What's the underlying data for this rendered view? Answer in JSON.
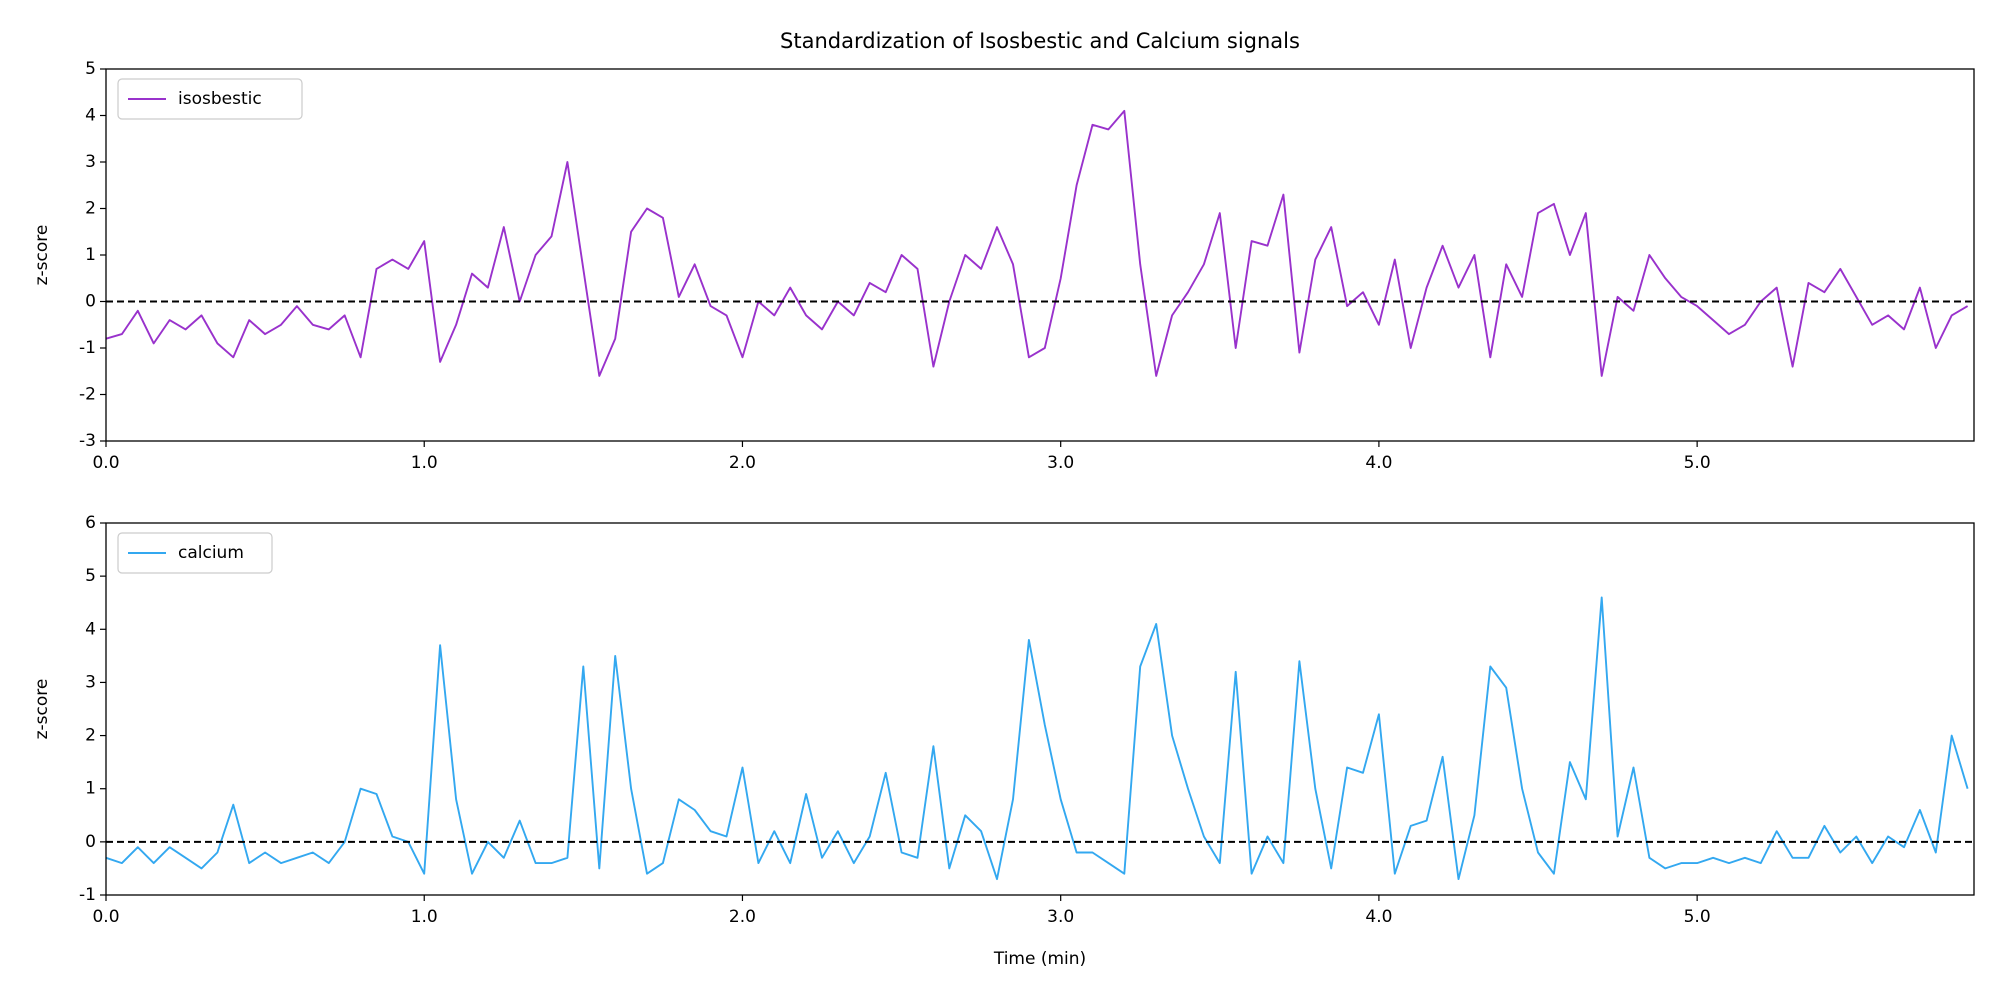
{
  "chart_data": [
    {
      "type": "line",
      "title": "Standardization of Isosbestic and Calcium signals",
      "y_label": "z-score",
      "x": [
        0,
        0.05,
        0.1,
        0.15,
        0.2,
        0.25,
        0.3,
        0.35,
        0.4,
        0.45,
        0.5,
        0.55,
        0.6,
        0.65,
        0.7,
        0.75,
        0.8,
        0.85,
        0.9,
        0.95,
        1.0,
        1.05,
        1.1,
        1.15,
        1.2,
        1.25,
        1.3,
        1.35,
        1.4,
        1.45,
        1.5,
        1.55,
        1.6,
        1.65,
        1.7,
        1.75,
        1.8,
        1.85,
        1.9,
        1.95,
        2.0,
        2.05,
        2.1,
        2.15,
        2.2,
        2.25,
        2.3,
        2.35,
        2.4,
        2.45,
        2.5,
        2.55,
        2.6,
        2.65,
        2.7,
        2.75,
        2.8,
        2.85,
        2.9,
        2.95,
        3.0,
        3.05,
        3.1,
        3.15,
        3.2,
        3.25,
        3.3,
        3.35,
        3.4,
        3.45,
        3.5,
        3.55,
        3.6,
        3.65,
        3.7,
        3.75,
        3.8,
        3.85,
        3.9,
        3.95,
        4.0,
        4.05,
        4.1,
        4.15,
        4.2,
        4.25,
        4.3,
        4.35,
        4.4,
        4.45,
        4.5,
        4.55,
        4.6,
        4.65,
        4.7,
        4.75,
        4.8,
        4.85,
        4.9,
        4.95,
        5.0,
        5.05,
        5.1,
        5.15,
        5.2,
        5.25,
        5.3,
        5.35,
        5.4,
        5.45,
        5.5,
        5.55,
        5.6,
        5.65,
        5.7,
        5.75,
        5.8,
        5.85
      ],
      "series": [
        {
          "name": "isosbestic",
          "color": "#9932cc",
          "values": [
            -0.8,
            -0.7,
            -0.2,
            -0.9,
            -0.4,
            -0.6,
            -0.3,
            -0.9,
            -1.2,
            -0.4,
            -0.7,
            -0.5,
            -0.1,
            -0.5,
            -0.6,
            -0.3,
            -1.2,
            0.7,
            0.9,
            0.7,
            1.3,
            -1.3,
            -0.5,
            0.6,
            0.3,
            1.6,
            0.0,
            1.0,
            1.4,
            3.0,
            0.7,
            -1.6,
            -0.8,
            1.5,
            2.0,
            1.8,
            0.1,
            0.8,
            -0.1,
            -0.3,
            -1.2,
            0.0,
            -0.3,
            0.3,
            -0.3,
            -0.6,
            0.0,
            -0.3,
            0.4,
            0.2,
            1.0,
            0.7,
            -1.4,
            0.0,
            1.0,
            0.7,
            1.6,
            0.8,
            -1.2,
            -1.0,
            0.5,
            2.5,
            3.8,
            3.7,
            4.1,
            0.8,
            -1.6,
            -0.3,
            0.2,
            0.8,
            1.9,
            -1.0,
            1.3,
            1.2,
            2.3,
            -1.1,
            0.9,
            1.6,
            -0.1,
            0.2,
            -0.5,
            0.9,
            -1.0,
            0.3,
            1.2,
            0.3,
            1.0,
            -1.2,
            0.8,
            0.1,
            1.9,
            2.1,
            1.0,
            1.9,
            -1.6,
            0.1,
            -0.2,
            1.0,
            0.5,
            0.1,
            -0.1,
            -0.4,
            -0.7,
            -0.5,
            0.0,
            0.3,
            -1.4,
            0.4,
            0.2,
            0.7,
            0.1,
            -0.5,
            -0.3,
            -0.6,
            0.3,
            -1.0,
            -0.3,
            -0.1
          ]
        }
      ],
      "hline": 0,
      "legend": "upper left",
      "xlim": [
        0,
        5.87
      ],
      "xticks": [
        {
          "value": 0,
          "label": "0.0"
        },
        {
          "value": 1,
          "label": "1.0"
        },
        {
          "value": 2,
          "label": "2.0"
        },
        {
          "value": 3,
          "label": "3.0"
        },
        {
          "value": 4,
          "label": "4.0"
        },
        {
          "value": 5,
          "label": "5.0"
        }
      ],
      "ylim": [
        -3,
        5
      ],
      "yticks": [
        -3,
        -2,
        -1,
        0,
        1,
        2,
        3,
        4,
        5
      ]
    },
    {
      "type": "line",
      "y_label": "z-score",
      "x_label": "Time (min)",
      "x": [
        0,
        0.05,
        0.1,
        0.15,
        0.2,
        0.25,
        0.3,
        0.35,
        0.4,
        0.45,
        0.5,
        0.55,
        0.6,
        0.65,
        0.7,
        0.75,
        0.8,
        0.85,
        0.9,
        0.95,
        1.0,
        1.05,
        1.1,
        1.15,
        1.2,
        1.25,
        1.3,
        1.35,
        1.4,
        1.45,
        1.5,
        1.55,
        1.6,
        1.65,
        1.7,
        1.75,
        1.8,
        1.85,
        1.9,
        1.95,
        2.0,
        2.05,
        2.1,
        2.15,
        2.2,
        2.25,
        2.3,
        2.35,
        2.4,
        2.45,
        2.5,
        2.55,
        2.6,
        2.65,
        2.7,
        2.75,
        2.8,
        2.85,
        2.9,
        2.95,
        3.0,
        3.05,
        3.1,
        3.15,
        3.2,
        3.25,
        3.3,
        3.35,
        3.4,
        3.45,
        3.5,
        3.55,
        3.6,
        3.65,
        3.7,
        3.75,
        3.8,
        3.85,
        3.9,
        3.95,
        4.0,
        4.05,
        4.1,
        4.15,
        4.2,
        4.25,
        4.3,
        4.35,
        4.4,
        4.45,
        4.5,
        4.55,
        4.6,
        4.65,
        4.7,
        4.75,
        4.8,
        4.85,
        4.9,
        4.95,
        5.0,
        5.05,
        5.1,
        5.15,
        5.2,
        5.25,
        5.3,
        5.35,
        5.4,
        5.45,
        5.5,
        5.55,
        5.6,
        5.65,
        5.7,
        5.75,
        5.8,
        5.85
      ],
      "series": [
        {
          "name": "calcium",
          "color": "#33a8f0",
          "values": [
            -0.3,
            -0.4,
            -0.1,
            -0.4,
            -0.1,
            -0.3,
            -0.5,
            -0.2,
            0.7,
            -0.4,
            -0.2,
            -0.4,
            -0.3,
            -0.2,
            -0.4,
            0.0,
            1.0,
            0.9,
            0.1,
            0.0,
            -0.6,
            3.7,
            0.8,
            -0.6,
            0.0,
            -0.3,
            0.4,
            -0.4,
            -0.4,
            -0.3,
            3.3,
            -0.5,
            3.5,
            1.0,
            -0.6,
            -0.4,
            0.8,
            0.6,
            0.2,
            0.1,
            1.4,
            -0.4,
            0.2,
            -0.4,
            0.9,
            -0.3,
            0.2,
            -0.4,
            0.1,
            1.3,
            -0.2,
            -0.3,
            1.8,
            -0.5,
            0.5,
            0.2,
            -0.7,
            0.8,
            3.8,
            2.2,
            0.8,
            -0.2,
            -0.2,
            -0.4,
            -0.6,
            3.3,
            4.1,
            2.0,
            1.0,
            0.1,
            -0.4,
            3.2,
            -0.6,
            0.1,
            -0.4,
            3.4,
            1.0,
            -0.5,
            1.4,
            1.3,
            2.4,
            -0.6,
            0.3,
            0.4,
            1.6,
            -0.7,
            0.5,
            3.3,
            2.9,
            1.0,
            -0.2,
            -0.6,
            1.5,
            0.8,
            4.6,
            0.1,
            1.4,
            -0.3,
            -0.5,
            -0.4,
            -0.4,
            -0.3,
            -0.4,
            -0.3,
            -0.4,
            0.2,
            -0.3,
            -0.3,
            0.3,
            -0.2,
            0.1,
            -0.4,
            0.1,
            -0.1,
            0.6,
            -0.2,
            2.0,
            1.0
          ]
        }
      ],
      "hline": 0,
      "legend": "upper left",
      "xlim": [
        0,
        5.87
      ],
      "xticks": [
        {
          "value": 0,
          "label": "0.0"
        },
        {
          "value": 1,
          "label": "1.0"
        },
        {
          "value": 2,
          "label": "2.0"
        },
        {
          "value": 3,
          "label": "3.0"
        },
        {
          "value": 4,
          "label": "4.0"
        },
        {
          "value": 5,
          "label": "5.0"
        }
      ],
      "ylim": [
        -1,
        6
      ],
      "yticks": [
        -1,
        0,
        1,
        2,
        3,
        4,
        5,
        6
      ]
    }
  ]
}
